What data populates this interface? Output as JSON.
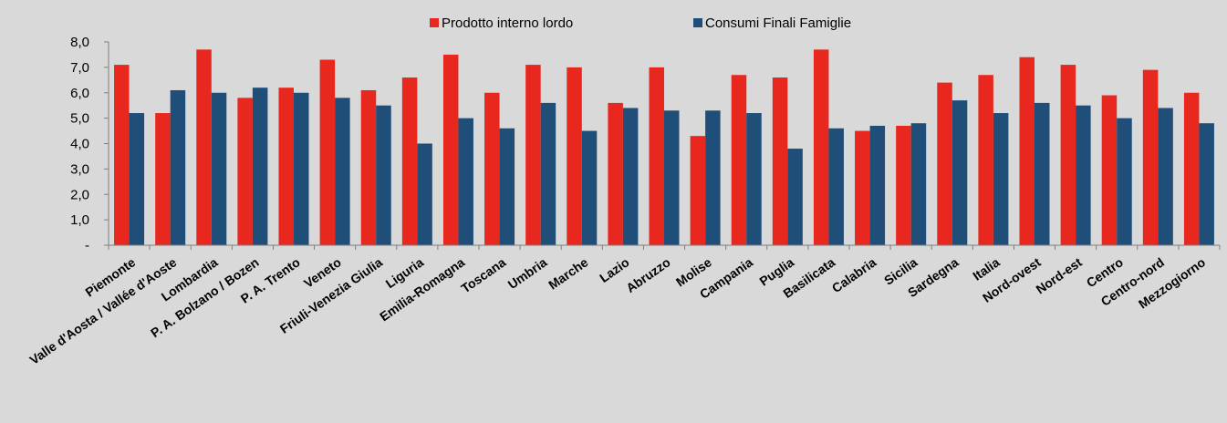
{
  "chart_data": {
    "type": "bar",
    "categories": [
      "Piemonte",
      "Valle d'Aosta / Vallée d'Aoste",
      "Lombardia",
      "P. A. Bolzano / Bozen",
      "P. A. Trento",
      "Veneto",
      "Friuli-Venezia Giulia",
      "Liguria",
      "Emilia-Romagna",
      "Toscana",
      "Umbria",
      "Marche",
      "Lazio",
      "Abruzzo",
      "Molise",
      "Campania",
      "Puglia",
      "Basilicata",
      "Calabria",
      "Sicilia",
      "Sardegna",
      "Italia",
      "Nord-ovest",
      "Nord-est",
      "Centro",
      "Centro-nord",
      "Mezzogiorno"
    ],
    "series": [
      {
        "name": "Prodotto interno lordo",
        "color": "#e8281e",
        "values": [
          7.1,
          5.2,
          7.7,
          5.8,
          6.2,
          7.3,
          6.1,
          6.6,
          7.5,
          6.0,
          7.1,
          7.0,
          5.6,
          7.0,
          4.3,
          6.7,
          6.6,
          7.7,
          4.5,
          4.7,
          6.4,
          6.7,
          7.4,
          7.1,
          5.9,
          6.9,
          6.0
        ]
      },
      {
        "name": "Consumi Finali Famiglie",
        "color": "#1f4e79",
        "values": [
          5.2,
          6.1,
          6.0,
          6.2,
          6.0,
          5.8,
          5.5,
          4.0,
          5.0,
          4.6,
          5.6,
          4.5,
          5.4,
          5.3,
          5.3,
          5.2,
          3.8,
          4.6,
          4.7,
          4.8,
          5.7,
          5.2,
          5.6,
          5.5,
          5.0,
          5.4,
          4.8
        ]
      }
    ],
    "ylim": [
      0,
      8
    ],
    "yticks": [
      "-",
      "1,0",
      "2,0",
      "3,0",
      "4,0",
      "5,0",
      "6,0",
      "7,0",
      "8,0"
    ],
    "grid": false,
    "legend_position": "top-center",
    "title": "",
    "xlabel": "",
    "ylabel": ""
  }
}
